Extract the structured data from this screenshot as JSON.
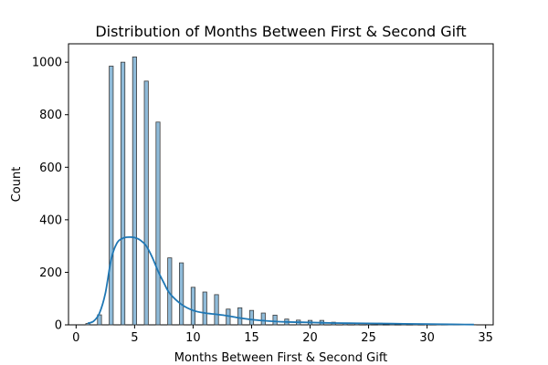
{
  "chart_data": {
    "type": "histogram",
    "title": "Distribution of Months Between First & Second Gift",
    "xlabel": "Months Between First & Second Gift",
    "ylabel": "Count",
    "xlim": [
      -0.65,
      35.65
    ],
    "ylim": [
      0,
      1070
    ],
    "xticks": [
      0,
      5,
      10,
      15,
      20,
      25,
      30,
      35
    ],
    "yticks": [
      0,
      200,
      400,
      600,
      800,
      1000
    ],
    "grid": false,
    "bar_color": "#1f77b4",
    "bar_fill_opacity": 0.5,
    "kde_color": "#1f77b4",
    "bars": [
      {
        "x": 1,
        "count": 5
      },
      {
        "x": 2,
        "count": 38
      },
      {
        "x": 3,
        "count": 985
      },
      {
        "x": 4,
        "count": 1000
      },
      {
        "x": 5,
        "count": 1020
      },
      {
        "x": 6,
        "count": 928
      },
      {
        "x": 7,
        "count": 772
      },
      {
        "x": 8,
        "count": 255
      },
      {
        "x": 9,
        "count": 236
      },
      {
        "x": 10,
        "count": 143
      },
      {
        "x": 11,
        "count": 125
      },
      {
        "x": 12,
        "count": 115
      },
      {
        "x": 13,
        "count": 60
      },
      {
        "x": 14,
        "count": 65
      },
      {
        "x": 15,
        "count": 55
      },
      {
        "x": 16,
        "count": 45
      },
      {
        "x": 17,
        "count": 37
      },
      {
        "x": 18,
        "count": 22
      },
      {
        "x": 19,
        "count": 18
      },
      {
        "x": 20,
        "count": 17
      },
      {
        "x": 21,
        "count": 17
      },
      {
        "x": 22,
        "count": 10
      },
      {
        "x": 23,
        "count": 7
      },
      {
        "x": 24,
        "count": 5
      },
      {
        "x": 25,
        "count": 5
      },
      {
        "x": 26,
        "count": 6
      },
      {
        "x": 27,
        "count": 2
      },
      {
        "x": 28,
        "count": 3
      },
      {
        "x": 29,
        "count": 2
      },
      {
        "x": 30,
        "count": 2
      },
      {
        "x": 31,
        "count": 2
      },
      {
        "x": 32,
        "count": 1
      },
      {
        "x": 33,
        "count": 1
      },
      {
        "x": 34,
        "count": 1
      }
    ],
    "kde": {
      "x": [
        1,
        1.5,
        2,
        2.5,
        3,
        3.5,
        4,
        4.5,
        5,
        5.5,
        6,
        6.5,
        7,
        7.5,
        8,
        9,
        10,
        11,
        12,
        13,
        14,
        15,
        16,
        17,
        18,
        19,
        20,
        22,
        24,
        26,
        28,
        30,
        32,
        34
      ],
      "y": [
        6,
        14,
        45,
        120,
        250,
        312,
        330,
        334,
        332,
        322,
        300,
        258,
        205,
        160,
        120,
        78,
        55,
        45,
        40,
        34,
        26,
        20,
        16,
        13,
        11,
        10,
        9,
        7,
        6,
        5,
        4,
        3,
        2,
        1
      ]
    }
  }
}
